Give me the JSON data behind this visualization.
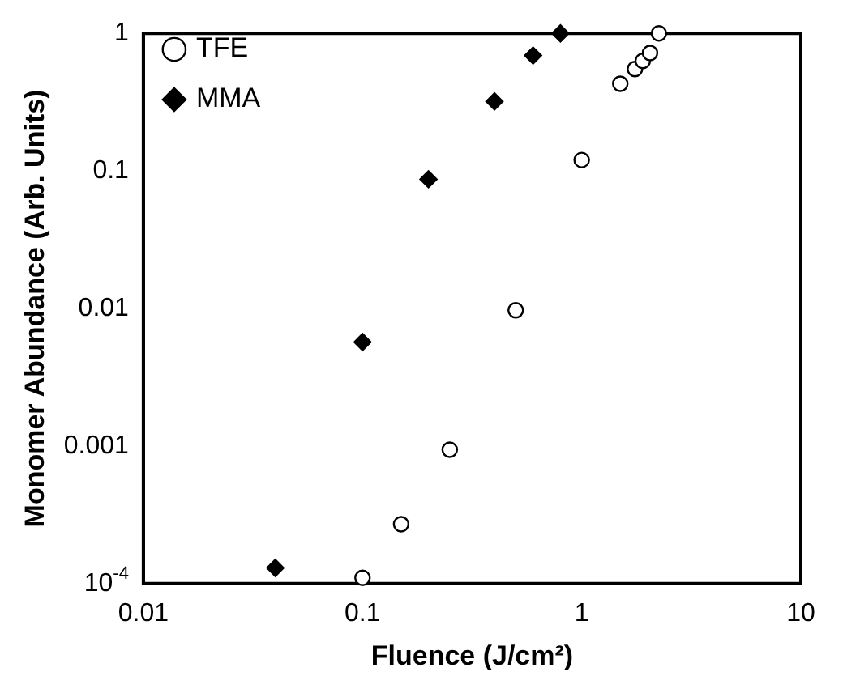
{
  "chart_data": {
    "type": "scatter",
    "xlabel": "Fluence (J/cm²)",
    "ylabel": "Monomer Abundance (Arb. Units)",
    "log": "xy",
    "grid": false,
    "legend": "top left",
    "xlim": [
      0.01,
      10
    ],
    "xticks": [
      0.01,
      0.1,
      1,
      10
    ],
    "ylim": [
      0.0001,
      1
    ],
    "yticks": [
      {
        "value": 0.0001,
        "label": "10$^{-4}$"
      },
      0.001,
      0.01,
      0.1,
      1
    ],
    "series": [
      {
        "name": "TFE",
        "color": "#000000",
        "marker": "circle",
        "x": [
          0.1,
          0.15,
          0.25,
          0.5,
          1,
          1.5,
          1.75,
          1.9,
          2.05,
          2.25
        ],
        "values": [
          0.00011,
          0.00027,
          0.00094,
          0.0097,
          0.12,
          0.43,
          0.55,
          0.63,
          0.72,
          1.0
        ]
      },
      {
        "name": "MMA",
        "color": "#000000",
        "marker": "diamond",
        "x": [
          0.04,
          0.1,
          0.2,
          0.4,
          0.6,
          0.8
        ],
        "values": [
          0.00013,
          0.0057,
          0.087,
          0.32,
          0.69,
          1.0
        ]
      }
    ]
  }
}
